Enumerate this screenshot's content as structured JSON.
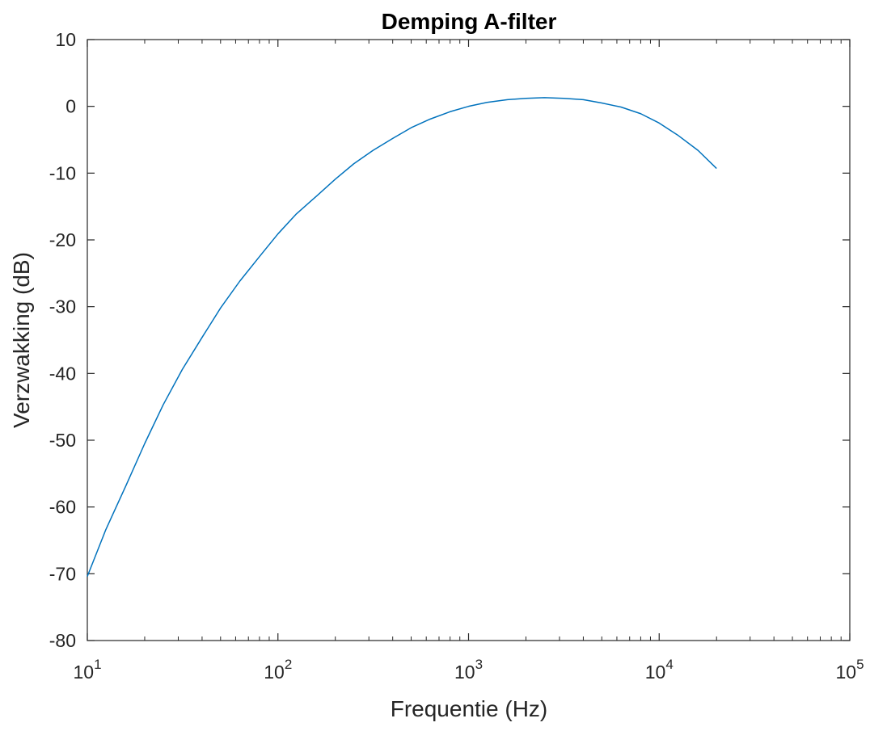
{
  "chart_data": {
    "type": "line",
    "title": "Demping A-filter",
    "xlabel": "Frequentie (Hz)",
    "ylabel": "Verzwakking (dB)",
    "xscale": "log",
    "xlim": [
      10,
      100000
    ],
    "ylim": [
      -80,
      10
    ],
    "grid": false,
    "x_tick_labels": [
      {
        "base": "10",
        "exp": "1"
      },
      {
        "base": "10",
        "exp": "2"
      },
      {
        "base": "10",
        "exp": "3"
      },
      {
        "base": "10",
        "exp": "4"
      },
      {
        "base": "10",
        "exp": "5"
      }
    ],
    "y_tick_labels": [
      "10",
      "0",
      "-10",
      "-20",
      "-30",
      "-40",
      "-50",
      "-60",
      "-70",
      "-80"
    ],
    "series": [
      {
        "color": "#0072BD",
        "x": [
          10,
          12.5,
          16,
          20,
          25,
          31.5,
          40,
          50,
          63,
          80,
          100,
          125,
          160,
          200,
          250,
          315,
          400,
          500,
          630,
          800,
          1000,
          1250,
          1600,
          2000,
          2500,
          3150,
          4000,
          5000,
          6300,
          8000,
          10000,
          12500,
          16000,
          20000
        ],
        "y": [
          -70.4,
          -63.4,
          -56.7,
          -50.5,
          -44.7,
          -39.4,
          -34.6,
          -30.2,
          -26.2,
          -22.5,
          -19.1,
          -16.1,
          -13.4,
          -10.9,
          -8.6,
          -6.6,
          -4.8,
          -3.2,
          -1.9,
          -0.8,
          0.0,
          0.6,
          1.0,
          1.2,
          1.3,
          1.2,
          1.0,
          0.5,
          -0.1,
          -1.1,
          -2.5,
          -4.3,
          -6.6,
          -9.3
        ]
      }
    ]
  }
}
